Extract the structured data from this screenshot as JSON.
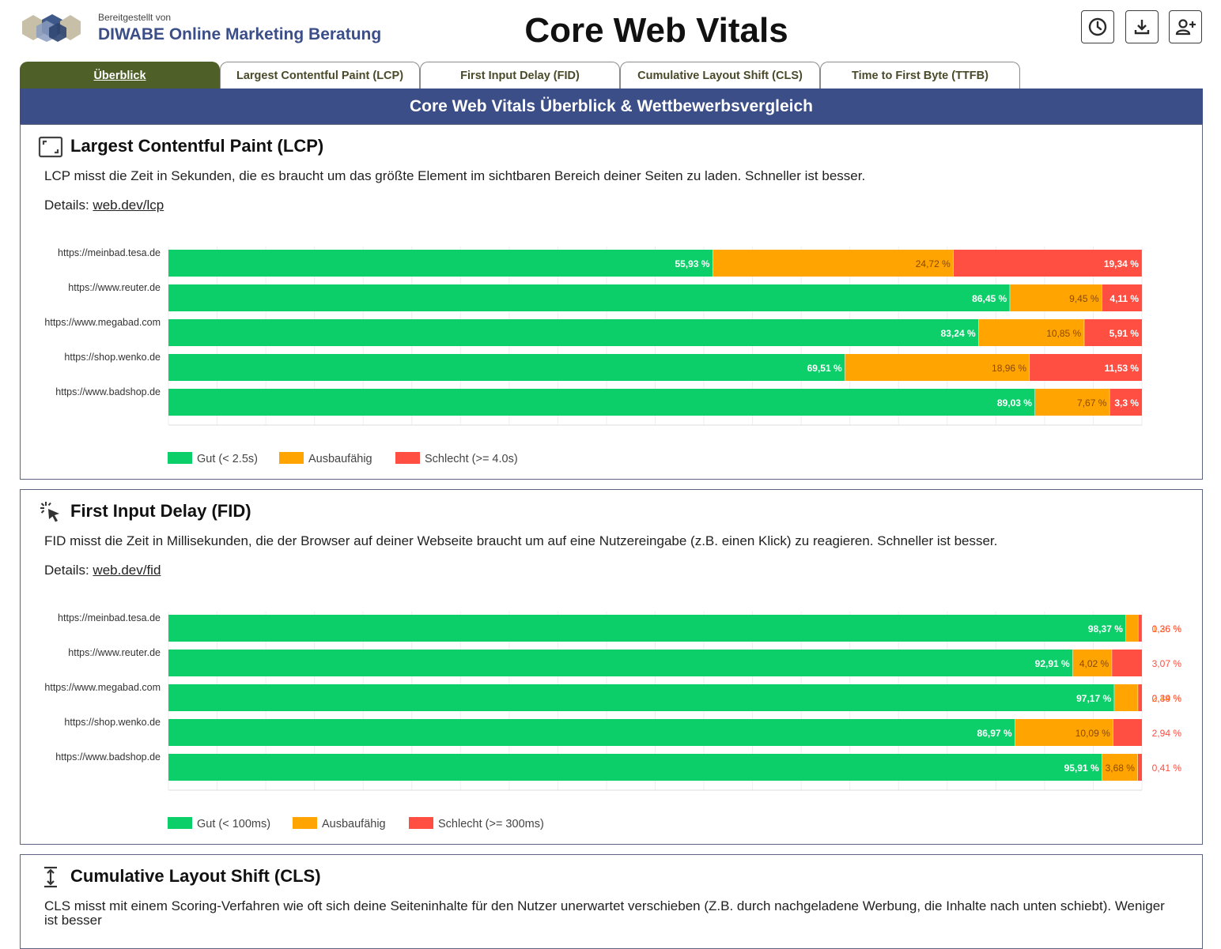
{
  "header": {
    "provided_by": "Bereitgestellt von",
    "company": "DIWABE Online Marketing Beratung",
    "title": "Core Web Vitals",
    "buttons": [
      {
        "icon": "clock-icon"
      },
      {
        "icon": "download-icon"
      },
      {
        "icon": "add-user-icon"
      }
    ]
  },
  "tabs": [
    {
      "label": "Überblick",
      "active": true
    },
    {
      "label": "Largest Contentful Paint (LCP)",
      "active": false
    },
    {
      "label": "First Input Delay (FID)",
      "active": false
    },
    {
      "label": "Cumulative Layout Shift (CLS)",
      "active": false
    },
    {
      "label": "Time to First Byte (TTFB)",
      "active": false
    }
  ],
  "banner": "Core Web Vitals Überblick & Wettbewerbsvergleich",
  "colors": {
    "good": "#0ccf6a",
    "improve": "#ffa400",
    "poor": "#ff4e42",
    "brand": "#3b4e88",
    "tab_active": "#4e5f28"
  },
  "sections": {
    "lcp": {
      "icon": "lcp-frame-icon",
      "title": "Largest Contentful Paint (LCP)",
      "description": "LCP misst die Zeit in Sekunden, die es braucht um das größte Element im sichtbaren Bereich deiner Seiten zu laden. Schneller ist besser.",
      "details_label": "Details:",
      "details_link": "web.dev/lcp"
    },
    "fid": {
      "icon": "click-cursor-icon",
      "title": "First Input Delay (FID)",
      "description": "FID misst die Zeit in Millisekunden, die der Browser auf deiner Webseite braucht um auf eine Nutzereingabe (z.B. einen Klick) zu reagieren. Schneller ist besser.",
      "details_label": "Details:",
      "details_link": "web.dev/fid"
    },
    "cls": {
      "icon": "vertical-shift-icon",
      "title": "Cumulative Layout Shift (CLS)",
      "description": "CLS misst mit einem Scoring-Verfahren wie oft sich deine Seiteninhalte für den Nutzer unerwartet verschieben (Z.B. durch nachgeladene Werbung, die Inhalte nach unten schiebt). Weniger ist besser"
    }
  },
  "chart_data": [
    {
      "type": "bar",
      "stacked": true,
      "orientation": "horizontal",
      "categories": [
        "https://meinbad.tesa.de",
        "https://www.reuter.de",
        "https://www.megabad.com",
        "https://shop.wenko.de",
        "https://www.badshop.de"
      ],
      "series": [
        {
          "name": "Gut (< 2.5s)",
          "values": [
            55.93,
            86.45,
            83.24,
            69.51,
            89.03
          ],
          "labels": [
            "55,93 %",
            "86,45 %",
            "83,24 %",
            "69,51 %",
            "89,03 %"
          ]
        },
        {
          "name": "Ausbaufähig",
          "values": [
            24.72,
            9.45,
            10.85,
            18.96,
            7.67
          ],
          "labels": [
            "24,72 %",
            "9,45 %",
            "10,85 %",
            "18,96 %",
            "7,67 %"
          ]
        },
        {
          "name": "Schlecht (>= 4.0s)",
          "values": [
            19.34,
            4.11,
            5.91,
            11.53,
            3.3
          ],
          "labels": [
            "19,34 %",
            "4,11 %",
            "5,91 %",
            "11,53 %",
            "3,3 %"
          ]
        }
      ],
      "xlim": [
        0,
        100
      ],
      "legend": "bottom-left"
    },
    {
      "type": "bar",
      "stacked": true,
      "orientation": "horizontal",
      "categories": [
        "https://meinbad.tesa.de",
        "https://www.reuter.de",
        "https://www.megabad.com",
        "https://shop.wenko.de",
        "https://www.badshop.de"
      ],
      "series": [
        {
          "name": "Gut (< 100ms)",
          "values": [
            98.37,
            92.91,
            97.17,
            86.97,
            95.91
          ],
          "labels": [
            "98,37 %",
            "92,91 %",
            "97,17 %",
            "86,97 %",
            "95,91 %"
          ]
        },
        {
          "name": "Ausbaufähig",
          "values": [
            1.26,
            4.02,
            2.44,
            10.09,
            3.68
          ],
          "labels": [
            "1,26 %",
            "4,02 %",
            "2,44 %",
            "10,09 %",
            "3,68 %"
          ]
        },
        {
          "name": "Schlecht (>= 300ms)",
          "values": [
            0.36,
            3.07,
            0.39,
            2.94,
            0.41
          ],
          "labels": [
            "0,36 %",
            "3,07 %",
            "0,39 %",
            "2,94 %",
            "0,41 %"
          ]
        }
      ],
      "xlim": [
        0,
        100
      ],
      "legend": "bottom-left"
    }
  ]
}
